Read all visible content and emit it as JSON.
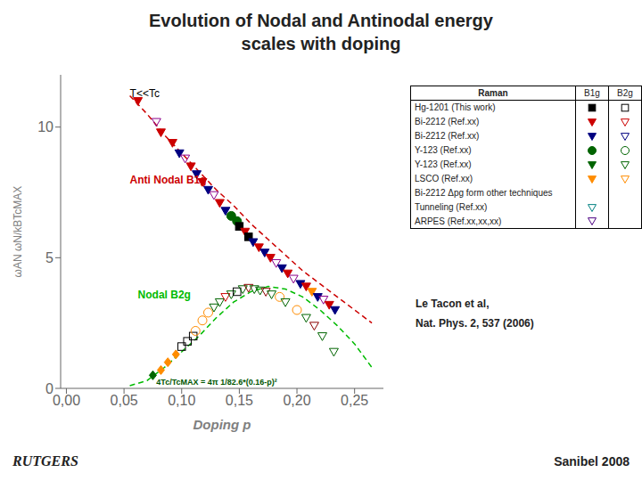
{
  "chart_data": {
    "type": "scatter",
    "title": "Evolution of Nodal and Antinodal energy",
    "subtitle": "scales with doping",
    "xlabel": "Doping p",
    "ylabel": "ωAN ωN/kBTcMAX",
    "xlim": [
      -0.005,
      0.275
    ],
    "ylim": [
      0,
      12
    ],
    "xticks": [
      {
        "value": 0,
        "label": "0,00"
      },
      {
        "value": 0.05,
        "label": "0,05"
      },
      {
        "value": 0.1,
        "label": "0,10"
      },
      {
        "value": 0.15,
        "label": "0,15"
      },
      {
        "value": 0.2,
        "label": "0,20"
      },
      {
        "value": 0.25,
        "label": "0,25"
      }
    ],
    "yticks": [
      0,
      5,
      10
    ],
    "grid": false,
    "annotations": [
      {
        "text": "T<<Tc",
        "x": 0.055,
        "y": 11.3,
        "color": "#000000"
      },
      {
        "text": "Anti Nodal B1g",
        "x": 0.055,
        "y": 8.0,
        "color": "#cc0000"
      },
      {
        "text": "Nodal B2g",
        "x": 0.062,
        "y": 3.6,
        "color": "#00bb00"
      },
      {
        "text": "4Tc/TcMAX = 4π 1/82.6*(0.16-p)²",
        "x": 0.078,
        "y": 0.25,
        "color": "#005500"
      }
    ],
    "legend_table": {
      "header": [
        "Raman",
        "B1g",
        "B2g"
      ],
      "rows": [
        {
          "text": "Hg-1201 (This work)",
          "symbols": [
            {
              "color": "#000000",
              "marker": "filled_square"
            },
            {
              "color": "#000000",
              "marker": "open_square"
            }
          ]
        },
        {
          "text": "Bi-2212 (Ref.xx)",
          "symbols": [
            {
              "color": "#cc0000",
              "marker": "filled_triangle_down"
            },
            {
              "color": "#cc0000",
              "marker": "open_triangle_down"
            }
          ]
        },
        {
          "text": "Bi-2212 (Ref.xx)",
          "symbols": [
            {
              "color": "#000080",
              "marker": "filled_triangle_down"
            },
            {
              "color": "#000080",
              "marker": "open_triangle_down"
            }
          ]
        },
        {
          "text": "Y-123  (Ref.xx)",
          "symbols": [
            {
              "color": "#006400",
              "marker": "filled_circle"
            },
            {
              "color": "#006400",
              "marker": "open_circle"
            }
          ]
        },
        {
          "text": "Y-123  (Ref.xx)",
          "symbols": [
            {
              "color": "#006400",
              "marker": "filled_triangle_down"
            },
            {
              "color": "#006400",
              "marker": "open_triangle_down"
            }
          ]
        },
        {
          "text": "LSCO  (Ref.xx)",
          "symbols": [
            {
              "color": "#FF8C00",
              "marker": "filled_triangle_down"
            },
            {
              "color": "#FF8C00",
              "marker": "open_triangle_down"
            }
          ]
        },
        {
          "text": "Bi-2212 Δpg form other techniques",
          "symbols": [
            null,
            null
          ]
        },
        {
          "text": "Tunneling (Ref.xx)",
          "symbols": [
            {
              "color": "#008080",
              "marker": "open_triangle_down"
            },
            null
          ]
        },
        {
          "text": "ARPES (Ref.xx,xx,xx)",
          "symbols": [
            {
              "color": "#4B0082",
              "marker": "open_triangle_down"
            },
            null
          ]
        }
      ]
    },
    "citations": [
      "Le Tacon et al,",
      "Nat. Phys. 2, 537 (2006)"
    ],
    "footer": {
      "left": "RUTGERS",
      "right": "Sanibel 2008"
    },
    "series": [
      {
        "type": "line",
        "color": "#cc0000",
        "line_style": "dashed",
        "x": [
          0.055,
          0.07,
          0.085,
          0.1,
          0.115,
          0.13,
          0.145,
          0.16,
          0.175,
          0.19,
          0.205,
          0.22,
          0.235,
          0.25,
          0.265
        ],
        "values": [
          11.2,
          10.5,
          9.7,
          9.0,
          8.3,
          7.6,
          7.0,
          6.3,
          5.7,
          5.1,
          4.5,
          4.0,
          3.5,
          3.0,
          2.5
        ]
      },
      {
        "type": "line",
        "color": "#00bb00",
        "line_style": "dashed",
        "x": [
          0.055,
          0.07,
          0.085,
          0.1,
          0.115,
          0.13,
          0.145,
          0.16,
          0.175,
          0.19,
          0.205,
          0.22,
          0.235,
          0.25,
          0.265
        ],
        "values": [
          0.1,
          0.3,
          0.8,
          1.4,
          2.0,
          2.7,
          3.3,
          3.7,
          3.9,
          3.8,
          3.5,
          3.0,
          2.4,
          1.7,
          0.8
        ]
      },
      {
        "type": "scatter",
        "color": "#cc0000",
        "marker": "filled_triangle_down",
        "x": [
          0.062
        ],
        "values": [
          11.0
        ]
      },
      {
        "type": "scatter",
        "color": "#8B008B",
        "marker": "open_triangle_down",
        "x": [
          0.078
        ],
        "values": [
          10.2
        ]
      },
      {
        "type": "scatter",
        "color": "#cc0000",
        "marker": "filled_triangle_down",
        "x": [
          0.082
        ],
        "values": [
          9.8
        ]
      },
      {
        "type": "scatter",
        "color": "#cc0000",
        "marker": "filled_triangle_down",
        "x": [
          0.092
        ],
        "values": [
          9.4
        ]
      },
      {
        "type": "scatter",
        "color": "#000080",
        "marker": "filled_triangle_down",
        "x": [
          0.098
        ],
        "values": [
          9.0
        ]
      },
      {
        "type": "scatter",
        "color": "#8B008B",
        "marker": "open_triangle_down",
        "x": [
          0.103
        ],
        "values": [
          8.8
        ]
      },
      {
        "type": "scatter",
        "color": "#cc0000",
        "marker": "filled_triangle_down",
        "x": [
          0.108
        ],
        "values": [
          8.5
        ]
      },
      {
        "type": "scatter",
        "color": "#000080",
        "marker": "filled_triangle_down",
        "x": [
          0.113
        ],
        "values": [
          8.2
        ]
      },
      {
        "type": "scatter",
        "color": "#cc0000",
        "marker": "filled_triangle_down",
        "x": [
          0.118
        ],
        "values": [
          7.9
        ]
      },
      {
        "type": "scatter",
        "color": "#000080",
        "marker": "filled_triangle_down",
        "x": [
          0.123
        ],
        "values": [
          7.6
        ]
      },
      {
        "type": "scatter",
        "color": "#8B008B",
        "marker": "open_triangle_down",
        "x": [
          0.128
        ],
        "values": [
          7.4
        ]
      },
      {
        "type": "scatter",
        "color": "#cc0000",
        "marker": "filled_triangle_down",
        "x": [
          0.133
        ],
        "values": [
          7.1
        ]
      },
      {
        "type": "scatter",
        "color": "#000080",
        "marker": "filled_triangle_down",
        "x": [
          0.138
        ],
        "values": [
          6.8
        ]
      },
      {
        "type": "scatter",
        "color": "#006400",
        "marker": "filled_circle",
        "x": [
          0.143
        ],
        "values": [
          6.6
        ]
      },
      {
        "type": "scatter",
        "color": "#006400",
        "marker": "filled_circle",
        "x": [
          0.148
        ],
        "values": [
          6.4
        ]
      },
      {
        "type": "scatter",
        "color": "#000000",
        "marker": "filled_square",
        "x": [
          0.15
        ],
        "values": [
          6.2
        ]
      },
      {
        "type": "scatter",
        "color": "#cc0000",
        "marker": "filled_triangle_down",
        "x": [
          0.155
        ],
        "values": [
          6.0
        ]
      },
      {
        "type": "scatter",
        "color": "#000000",
        "marker": "filled_square",
        "x": [
          0.158
        ],
        "values": [
          5.8
        ]
      },
      {
        "type": "scatter",
        "color": "#000080",
        "marker": "filled_triangle_down",
        "x": [
          0.162
        ],
        "values": [
          5.6
        ]
      },
      {
        "type": "scatter",
        "color": "#cc0000",
        "marker": "filled_triangle_down",
        "x": [
          0.167
        ],
        "values": [
          5.4
        ]
      },
      {
        "type": "scatter",
        "color": "#000080",
        "marker": "filled_triangle_down",
        "x": [
          0.172
        ],
        "values": [
          5.2
        ]
      },
      {
        "type": "scatter",
        "color": "#cc0000",
        "marker": "filled_triangle_down",
        "x": [
          0.177
        ],
        "values": [
          5.0
        ]
      },
      {
        "type": "scatter",
        "color": "#8B008B",
        "marker": "open_triangle_down",
        "x": [
          0.182
        ],
        "values": [
          4.8
        ]
      },
      {
        "type": "scatter",
        "color": "#000080",
        "marker": "filled_triangle_down",
        "x": [
          0.187
        ],
        "values": [
          4.6
        ]
      },
      {
        "type": "scatter",
        "color": "#cc0000",
        "marker": "filled_triangle_down",
        "x": [
          0.192
        ],
        "values": [
          4.4
        ]
      },
      {
        "type": "scatter",
        "color": "#8B008B",
        "marker": "open_triangle_down",
        "x": [
          0.197
        ],
        "values": [
          4.2
        ]
      },
      {
        "type": "scatter",
        "color": "#000080",
        "marker": "filled_triangle_down",
        "x": [
          0.203
        ],
        "values": [
          4.0
        ]
      },
      {
        "type": "scatter",
        "color": "#cc0000",
        "marker": "filled_triangle_down",
        "x": [
          0.208
        ],
        "values": [
          3.9
        ]
      },
      {
        "type": "scatter",
        "color": "#FF8C00",
        "marker": "filled_triangle_down",
        "x": [
          0.213
        ],
        "values": [
          3.7
        ]
      },
      {
        "type": "scatter",
        "color": "#000080",
        "marker": "filled_triangle_down",
        "x": [
          0.218
        ],
        "values": [
          3.5
        ]
      },
      {
        "type": "scatter",
        "color": "#8B008B",
        "marker": "open_triangle_down",
        "x": [
          0.223
        ],
        "values": [
          3.4
        ]
      },
      {
        "type": "scatter",
        "color": "#cc0000",
        "marker": "filled_triangle_down",
        "x": [
          0.228
        ],
        "values": [
          3.2
        ]
      },
      {
        "type": "scatter",
        "color": "#000080",
        "marker": "filled_triangle_down",
        "x": [
          0.233
        ],
        "values": [
          3.0
        ]
      },
      {
        "type": "scatter",
        "color": "#006400",
        "marker": "filled_diamond",
        "x": [
          0.075
        ],
        "values": [
          0.5
        ]
      },
      {
        "type": "scatter",
        "color": "#FF8C00",
        "marker": "filled_diamond",
        "x": [
          0.082
        ],
        "values": [
          0.7
        ]
      },
      {
        "type": "scatter",
        "color": "#FF8C00",
        "marker": "filled_diamond",
        "x": [
          0.088
        ],
        "values": [
          1.0
        ]
      },
      {
        "type": "scatter",
        "color": "#FF8C00",
        "marker": "filled_diamond",
        "x": [
          0.095
        ],
        "values": [
          1.3
        ]
      },
      {
        "type": "scatter",
        "color": "#000000",
        "marker": "open_square",
        "x": [
          0.1
        ],
        "values": [
          1.6
        ]
      },
      {
        "type": "scatter",
        "color": "#000000",
        "marker": "open_square",
        "x": [
          0.105
        ],
        "values": [
          1.8
        ]
      },
      {
        "type": "scatter",
        "color": "#000000",
        "marker": "open_square",
        "x": [
          0.11
        ],
        "values": [
          2.0
        ]
      },
      {
        "type": "scatter",
        "color": "#FF8C00",
        "marker": "open_circle",
        "x": [
          0.112
        ],
        "values": [
          2.2
        ]
      },
      {
        "type": "scatter",
        "color": "#FF8C00",
        "marker": "open_circle",
        "x": [
          0.118
        ],
        "values": [
          2.6
        ]
      },
      {
        "type": "scatter",
        "color": "#FF8C00",
        "marker": "open_circle",
        "x": [
          0.123
        ],
        "values": [
          2.9
        ]
      },
      {
        "type": "scatter",
        "color": "#006400",
        "marker": "open_triangle_down",
        "x": [
          0.128
        ],
        "values": [
          3.1
        ]
      },
      {
        "type": "scatter",
        "color": "#006400",
        "marker": "open_triangle_down",
        "x": [
          0.133
        ],
        "values": [
          3.3
        ]
      },
      {
        "type": "scatter",
        "color": "#cc0000",
        "marker": "open_triangle_down",
        "x": [
          0.138
        ],
        "values": [
          3.5
        ]
      },
      {
        "type": "scatter",
        "color": "#006400",
        "marker": "open_triangle_down",
        "x": [
          0.143
        ],
        "values": [
          3.6
        ]
      },
      {
        "type": "scatter",
        "color": "#000000",
        "marker": "open_square",
        "x": [
          0.148
        ],
        "values": [
          3.7
        ]
      },
      {
        "type": "scatter",
        "color": "#006400",
        "marker": "open_triangle_down",
        "x": [
          0.153
        ],
        "values": [
          3.8
        ]
      },
      {
        "type": "scatter",
        "color": "#8B0000",
        "marker": "open_triangle_down",
        "x": [
          0.158
        ],
        "values": [
          3.85
        ]
      },
      {
        "type": "scatter",
        "color": "#006400",
        "marker": "open_triangle_down",
        "x": [
          0.163
        ],
        "values": [
          3.8
        ]
      },
      {
        "type": "scatter",
        "color": "#006400",
        "marker": "open_triangle_down",
        "x": [
          0.168
        ],
        "values": [
          3.75
        ]
      },
      {
        "type": "scatter",
        "color": "#8B0000",
        "marker": "open_triangle_down",
        "x": [
          0.173
        ],
        "values": [
          3.7
        ]
      },
      {
        "type": "scatter",
        "color": "#006400",
        "marker": "open_triangle_down",
        "x": [
          0.178
        ],
        "values": [
          3.6
        ]
      },
      {
        "type": "scatter",
        "color": "#FF8C00",
        "marker": "open_circle",
        "x": [
          0.185
        ],
        "values": [
          3.5
        ]
      },
      {
        "type": "scatter",
        "color": "#006400",
        "marker": "open_triangle_down",
        "x": [
          0.19
        ],
        "values": [
          3.3
        ]
      },
      {
        "type": "scatter",
        "color": "#FF8C00",
        "marker": "open_circle",
        "x": [
          0.2
        ],
        "values": [
          3.0
        ]
      },
      {
        "type": "scatter",
        "color": "#006400",
        "marker": "open_triangle_down",
        "x": [
          0.208
        ],
        "values": [
          2.7
        ]
      },
      {
        "type": "scatter",
        "color": "#8B0000",
        "marker": "open_triangle_down",
        "x": [
          0.215
        ],
        "values": [
          2.4
        ]
      },
      {
        "type": "scatter",
        "color": "#006400",
        "marker": "open_triangle_down",
        "x": [
          0.222
        ],
        "values": [
          2.0
        ]
      },
      {
        "type": "scatter",
        "color": "#006400",
        "marker": "open_triangle_down",
        "x": [
          0.232
        ],
        "values": [
          1.4
        ]
      }
    ]
  }
}
